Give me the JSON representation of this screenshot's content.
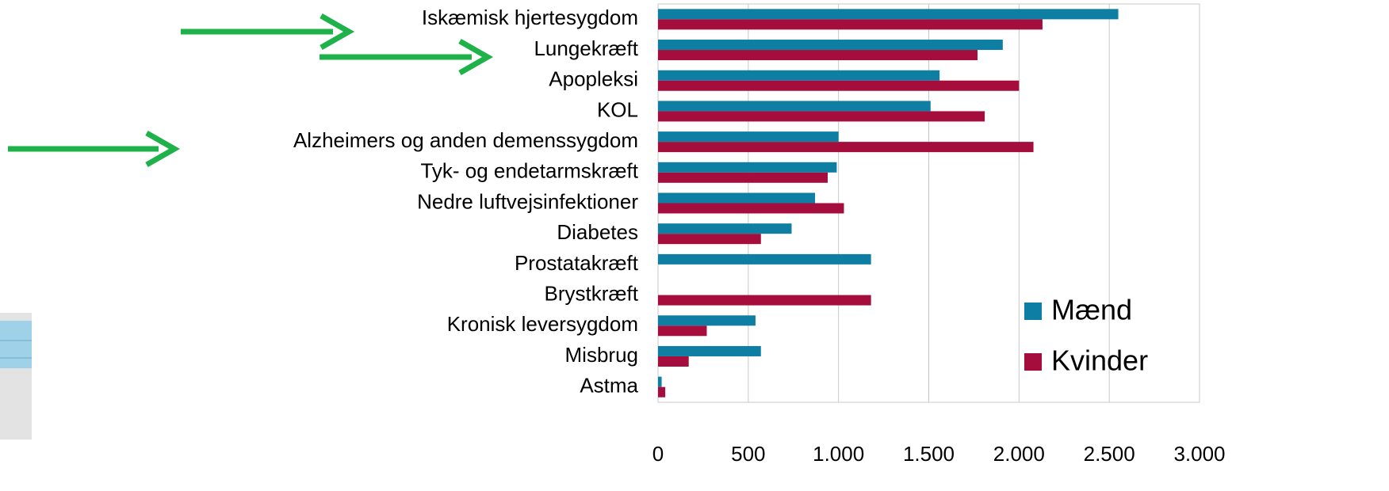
{
  "chart_data": {
    "type": "barh",
    "categories": [
      "Iskæmisk hjertesygdom",
      "Lungekræft",
      "Apopleksi",
      "KOL",
      "Alzheimers og anden demenssygdom",
      "Tyk- og endetarmskræft",
      "Nedre luftvejsinfektioner",
      "Diabetes",
      "Prostatakræft",
      "Brystkræft",
      "Kronisk leversygdom",
      "Misbrug",
      "Astma"
    ],
    "series": [
      {
        "name": "Mænd",
        "color": "#0e7fa3",
        "values": [
          2550,
          1910,
          1560,
          1510,
          1000,
          990,
          870,
          740,
          1180,
          null,
          540,
          570,
          20
        ]
      },
      {
        "name": "Kvinder",
        "color": "#a50d3c",
        "values": [
          2130,
          1770,
          2000,
          1810,
          2080,
          940,
          1030,
          570,
          null,
          1180,
          270,
          170,
          40
        ]
      }
    ],
    "xlim": [
      0,
      3000
    ],
    "xticks": [
      0,
      500,
      {
        "value": 1000,
        "label": "1.000"
      },
      {
        "value": 1500,
        "label": "1.500"
      },
      {
        "value": 2000,
        "label": "2.000"
      },
      {
        "value": 2500,
        "label": "2.500"
      },
      {
        "value": 3000,
        "label": "3.000"
      }
    ],
    "grid": true,
    "legend": "right"
  }
}
